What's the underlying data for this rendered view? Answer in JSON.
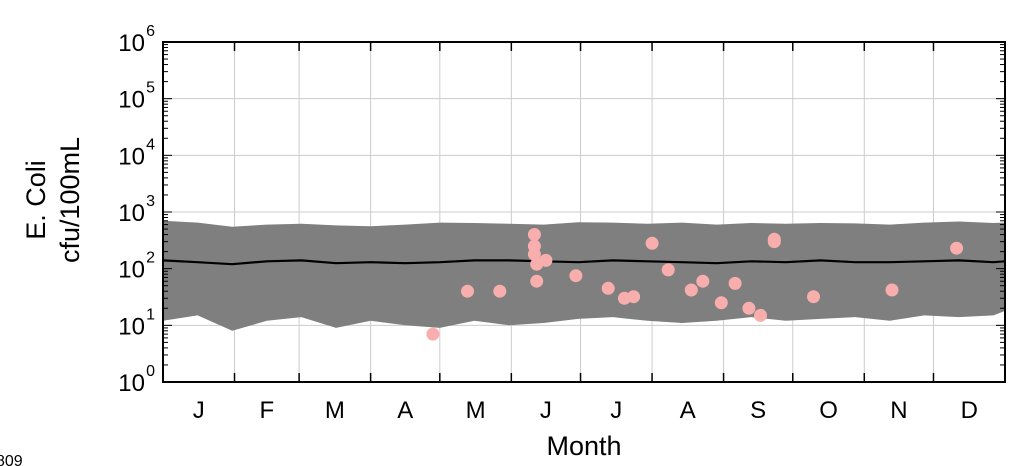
{
  "chart_data": {
    "type": "area",
    "title": "",
    "xlabel": "Month",
    "ylabel_line1": "E. Coli",
    "ylabel_line2": "cfu/100mL",
    "y_scale": "log10",
    "ylim": [
      1,
      1000000
    ],
    "y_ticks": [
      {
        "value": 1,
        "base": "10",
        "exp": "0"
      },
      {
        "value": 10,
        "base": "10",
        "exp": "1"
      },
      {
        "value": 100,
        "base": "10",
        "exp": "2"
      },
      {
        "value": 1000,
        "base": "10",
        "exp": "3"
      },
      {
        "value": 10000,
        "base": "10",
        "exp": "4"
      },
      {
        "value": 100000,
        "base": "10",
        "exp": "5"
      },
      {
        "value": 1000000,
        "base": "10",
        "exp": "6"
      }
    ],
    "xlim": [
      1,
      366
    ],
    "month_labels": [
      "J",
      "F",
      "M",
      "A",
      "M",
      "J",
      "J",
      "A",
      "S",
      "O",
      "N",
      "D"
    ],
    "grid": true,
    "legend": "none",
    "corner_text": "809",
    "band_color": "#7f7f7f",
    "line_color": "#000000",
    "point_color": "#f9aeae",
    "series": [
      {
        "kind": "band",
        "day": [
          1,
          16,
          31,
          46,
          61,
          76,
          91,
          106,
          121,
          136,
          151,
          166,
          181,
          196,
          211,
          226,
          241,
          256,
          271,
          286,
          301,
          316,
          331,
          346,
          361,
          366
        ],
        "lower": [
          12,
          15,
          8,
          12,
          14,
          9,
          12,
          10,
          9,
          12,
          10,
          11,
          13,
          14,
          12,
          11,
          12,
          14,
          12,
          13,
          14,
          12,
          15,
          14,
          15,
          18
        ],
        "upper": [
          700,
          650,
          550,
          600,
          620,
          580,
          560,
          600,
          650,
          640,
          620,
          600,
          660,
          650,
          620,
          650,
          600,
          640,
          620,
          640,
          630,
          600,
          650,
          680,
          640,
          650
        ]
      },
      {
        "kind": "line",
        "day": [
          1,
          16,
          31,
          46,
          61,
          76,
          91,
          106,
          121,
          136,
          151,
          166,
          181,
          196,
          211,
          226,
          241,
          256,
          271,
          286,
          301,
          316,
          331,
          346,
          361,
          366
        ],
        "median": [
          140,
          130,
          120,
          135,
          140,
          125,
          130,
          125,
          130,
          140,
          140,
          135,
          130,
          140,
          135,
          130,
          125,
          135,
          130,
          140,
          130,
          130,
          135,
          140,
          130,
          135
        ]
      },
      {
        "kind": "scatter",
        "points": [
          {
            "day": 118,
            "value": 7
          },
          {
            "day": 133,
            "value": 40
          },
          {
            "day": 147,
            "value": 40
          },
          {
            "day": 162,
            "value": 400
          },
          {
            "day": 162,
            "value": 250
          },
          {
            "day": 162,
            "value": 180
          },
          {
            "day": 163,
            "value": 120
          },
          {
            "day": 163,
            "value": 60
          },
          {
            "day": 167,
            "value": 140
          },
          {
            "day": 180,
            "value": 75
          },
          {
            "day": 194,
            "value": 45
          },
          {
            "day": 201,
            "value": 30
          },
          {
            "day": 205,
            "value": 32
          },
          {
            "day": 213,
            "value": 280
          },
          {
            "day": 220,
            "value": 95
          },
          {
            "day": 230,
            "value": 42
          },
          {
            "day": 235,
            "value": 60
          },
          {
            "day": 243,
            "value": 25
          },
          {
            "day": 249,
            "value": 55
          },
          {
            "day": 255,
            "value": 20
          },
          {
            "day": 260,
            "value": 15
          },
          {
            "day": 266,
            "value": 330
          },
          {
            "day": 266,
            "value": 300
          },
          {
            "day": 283,
            "value": 32
          },
          {
            "day": 317,
            "value": 42
          },
          {
            "day": 345,
            "value": 230
          }
        ]
      }
    ]
  }
}
